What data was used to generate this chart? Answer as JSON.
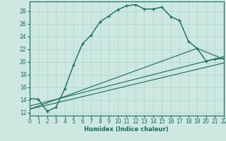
{
  "xlabel": "Humidex (Indice chaleur)",
  "bg_color": "#cce8e0",
  "grid_color": "#b0d8d0",
  "line_color": "#1a6b5a",
  "xlim": [
    0,
    22
  ],
  "ylim": [
    11.5,
    29.5
  ],
  "xticks": [
    0,
    1,
    2,
    3,
    4,
    5,
    6,
    7,
    8,
    9,
    10,
    11,
    12,
    13,
    14,
    15,
    16,
    17,
    18,
    19,
    20,
    21,
    22
  ],
  "yticks": [
    12,
    14,
    16,
    18,
    20,
    22,
    24,
    26,
    28
  ],
  "curve1_x": [
    0,
    1,
    2,
    3,
    4,
    5,
    6,
    7,
    8,
    9,
    10,
    11,
    12,
    13,
    14,
    15,
    16,
    17,
    18,
    19,
    20,
    21,
    22
  ],
  "curve1_y": [
    14.2,
    14.1,
    12.2,
    12.8,
    15.7,
    19.5,
    22.8,
    24.2,
    26.3,
    27.2,
    28.2,
    28.8,
    29.0,
    28.3,
    28.3,
    28.6,
    27.1,
    26.5,
    23.2,
    22.1,
    20.1,
    20.4,
    20.5
  ],
  "line2_x": [
    0,
    19,
    22
  ],
  "line2_y": [
    12.5,
    22.1,
    20.4
  ],
  "line3_x": [
    0,
    22
  ],
  "line3_y": [
    13.0,
    20.8
  ],
  "line4_x": [
    0,
    22
  ],
  "line4_y": [
    12.5,
    19.8
  ]
}
